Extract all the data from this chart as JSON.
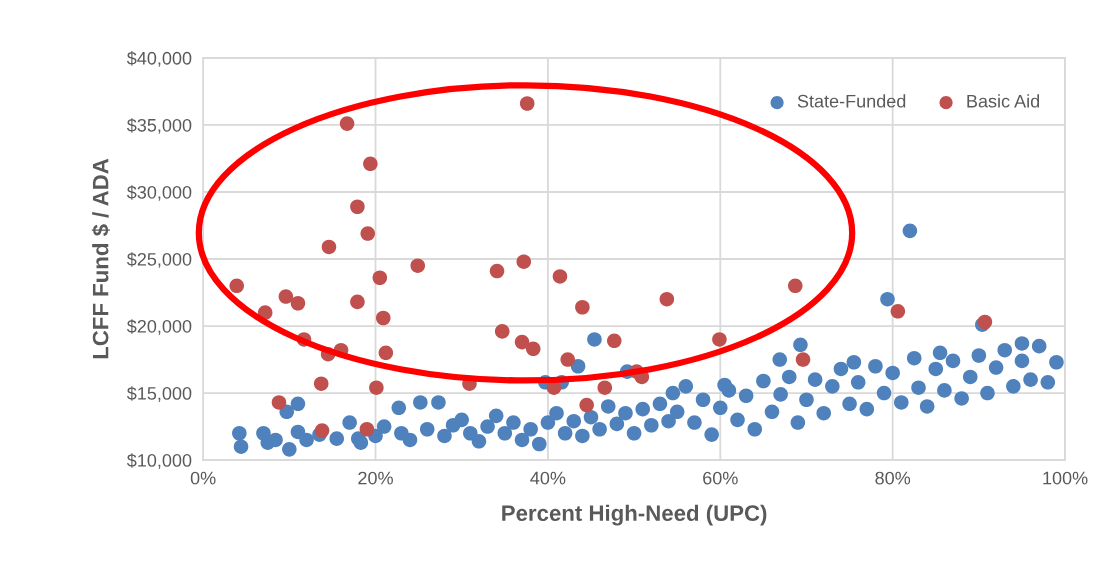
{
  "chart_data": {
    "type": "scatter",
    "xlabel": "Percent High-Need (UPC)",
    "ylabel": "LCFF Fund $ / ADA",
    "xlim": [
      0,
      100
    ],
    "ylim": [
      10000,
      40000
    ],
    "xticks": [
      {
        "value": 0,
        "label": "0%"
      },
      {
        "value": 20,
        "label": "20%"
      },
      {
        "value": 40,
        "label": "40%"
      },
      {
        "value": 60,
        "label": "60%"
      },
      {
        "value": 80,
        "label": "80%"
      },
      {
        "value": 100,
        "label": "100%"
      }
    ],
    "yticks": [
      {
        "value": 10000,
        "label": "$10,000"
      },
      {
        "value": 15000,
        "label": "$15,000"
      },
      {
        "value": 20000,
        "label": "$20,000"
      },
      {
        "value": 25000,
        "label": "$25,000"
      },
      {
        "value": 30000,
        "label": "$30,000"
      },
      {
        "value": 35000,
        "label": "$35,000"
      },
      {
        "value": 40000,
        "label": "$40,000"
      }
    ],
    "grid": true,
    "legend": "top right",
    "marker": "circle",
    "series": [
      {
        "name": "State-Funded",
        "color": "#4f81bd",
        "x": [
          4.2,
          4.4,
          7,
          7.5,
          8.4,
          9.7,
          10,
          11,
          11,
          12,
          13.5,
          15.5,
          17,
          18,
          18.3,
          20,
          21,
          22.7,
          23,
          24,
          25.2,
          26,
          27.3,
          28,
          29,
          30,
          31,
          32,
          33,
          34,
          35,
          36,
          37,
          38,
          39,
          39.7,
          40,
          41,
          41.6,
          42,
          43,
          43.5,
          44,
          45,
          45.4,
          46,
          47,
          48,
          49,
          49.2,
          50,
          51,
          52,
          53,
          54,
          54.5,
          55,
          56,
          57,
          58,
          59,
          60,
          60.5,
          61,
          62,
          63,
          64,
          65,
          66,
          66.9,
          67,
          68,
          69,
          69.3,
          70,
          71,
          72,
          73,
          74,
          75,
          75.5,
          76,
          77,
          78,
          79,
          79.4,
          80,
          81,
          82,
          82.5,
          83,
          84,
          85,
          85.5,
          86,
          87,
          88,
          89,
          90,
          90.4,
          91,
          92,
          93,
          94,
          95,
          95,
          96,
          97,
          98,
          99
        ],
        "values": [
          12000,
          11000,
          12000,
          11300,
          11500,
          13600,
          10800,
          12100,
          14200,
          11500,
          11900,
          11600,
          12800,
          11600,
          11300,
          11800,
          12500,
          13900,
          12000,
          11500,
          14300,
          12300,
          14300,
          11800,
          12600,
          13000,
          12000,
          11400,
          12500,
          13300,
          12000,
          12800,
          11500,
          12300,
          11200,
          15800,
          12800,
          13500,
          15800,
          12000,
          12900,
          17000,
          11800,
          13200,
          19000,
          12300,
          14000,
          12700,
          13500,
          16600,
          12000,
          13800,
          12600,
          14200,
          12900,
          15000,
          13600,
          15500,
          12800,
          14500,
          11900,
          13900,
          15600,
          15200,
          13000,
          14800,
          12300,
          15900,
          13600,
          17500,
          14900,
          16200,
          12800,
          18600,
          14500,
          16000,
          13500,
          15500,
          16800,
          14200,
          17300,
          15800,
          13800,
          17000,
          15000,
          22000,
          16500,
          14300,
          27100,
          17600,
          15400,
          14000,
          16800,
          18000,
          15200,
          17400,
          14600,
          16200,
          17800,
          20100,
          15000,
          16900,
          18200,
          15500,
          17400,
          18700,
          16000,
          18500,
          15800,
          17300
        ]
      },
      {
        "name": "Basic Aid",
        "color": "#c0504d",
        "x": [
          3.9,
          7.2,
          9.6,
          11,
          11.7,
          8.8,
          13.7,
          13.8,
          14.5,
          16,
          14.6,
          16.7,
          17.9,
          17.9,
          19.4,
          19.1,
          19,
          20.5,
          20.9,
          21.2,
          20.1,
          24.9,
          30.9,
          34.1,
          34.7,
          37,
          37.2,
          37.6,
          38.3,
          41.4,
          42.3,
          44,
          44.5,
          47.7,
          46.6,
          40.7,
          50.3,
          50.9,
          53.8,
          59.9,
          68.7,
          69.6,
          80.6,
          90.7
        ],
        "values": [
          23000,
          21000,
          22200,
          21700,
          19000,
          14300,
          15700,
          12200,
          17900,
          18200,
          25900,
          35100,
          28900,
          21800,
          32100,
          26900,
          12300,
          23600,
          20600,
          18000,
          15400,
          24500,
          15700,
          24100,
          19600,
          18800,
          24800,
          36600,
          18300,
          23700,
          17500,
          21400,
          14100,
          18900,
          15400,
          15400,
          16600,
          16200,
          22000,
          19000,
          23000,
          17500,
          21100,
          20300
        ]
      }
    ]
  }
}
